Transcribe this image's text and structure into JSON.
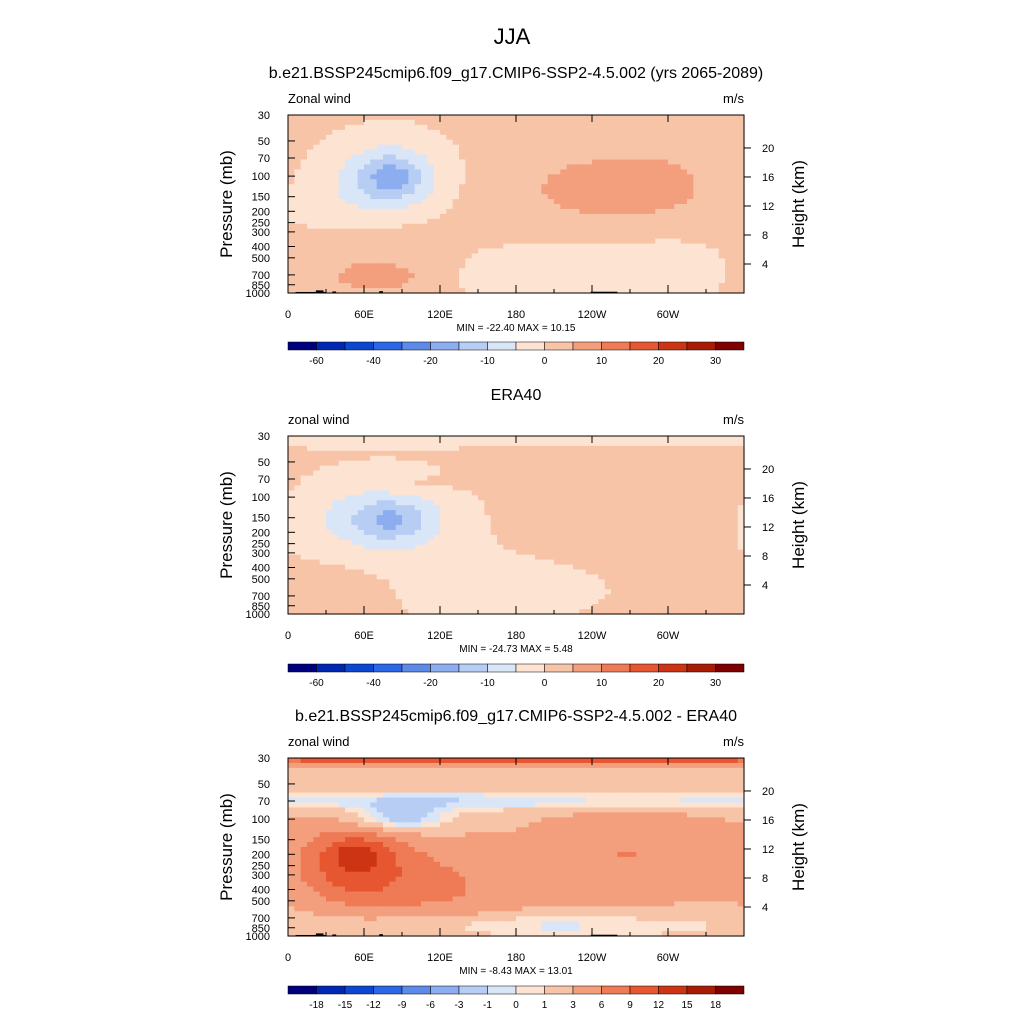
{
  "figure": {
    "title": "JJA"
  },
  "chart_data": [
    {
      "type": "heatmap",
      "title": "b.e21.BSSP245cmip6.f09_g17.CMIP6-SSP2-4.5.002 (yrs 2065-2089)",
      "left_label": "Zonal wind",
      "right_label": "m/s",
      "ylabel": "Pressure (mb)",
      "y2label": "Height (km)",
      "stats": "MIN = -22.40  MAX =  10.15",
      "xticks": [
        "0",
        "60E",
        "120E",
        "180",
        "120W",
        "60W"
      ],
      "yticks": [
        "30",
        "50",
        "70",
        "100",
        "150",
        "200",
        "250",
        "300",
        "400",
        "500",
        "700",
        "850",
        "1000"
      ],
      "y2ticks": [
        "20",
        "16",
        "12",
        "8",
        "4"
      ],
      "background_value": 1,
      "features": [
        {
          "x": 80,
          "y": 110,
          "v": -12,
          "sx": 32,
          "sy": 0.55
        },
        {
          "x": 82,
          "y": 100,
          "v": -8,
          "sx": 16,
          "sy": 0.28
        },
        {
          "x": 30,
          "y": 200,
          "v": -3,
          "sx": 40,
          "sy": 0.6
        },
        {
          "x": 70,
          "y": 500,
          "v": 4,
          "sx": 50,
          "sy": 1.0
        },
        {
          "x": 75,
          "y": 720,
          "v": 3,
          "sx": 30,
          "sy": 0.2
        },
        {
          "x": 240,
          "y": 130,
          "v": 5,
          "sx": 55,
          "sy": 0.65
        },
        {
          "x": 290,
          "y": 120,
          "v": 5,
          "sx": 30,
          "sy": 0.35
        },
        {
          "x": 185,
          "y": 700,
          "v": -4,
          "sx": 60,
          "sy": 0.5
        },
        {
          "x": 290,
          "y": 700,
          "v": -4,
          "sx": 40,
          "sy": 0.5
        }
      ],
      "colorbar_labels": [
        "-60",
        "-40",
        "-20",
        "-10",
        "0",
        "10",
        "20",
        "30"
      ],
      "colorbar_levels": [
        -70,
        -60,
        -50,
        -40,
        -30,
        -20,
        -15,
        -10,
        -5,
        0,
        5,
        10,
        15,
        20,
        25,
        30,
        35
      ],
      "show_terrain": true
    },
    {
      "type": "heatmap",
      "title": "ERA40",
      "left_label": "zonal wind",
      "right_label": "m/s",
      "ylabel": "Pressure (mb)",
      "y2label": "Height (km)",
      "stats": "MIN = -24.73  MAX =   5.48",
      "xticks": [
        "0",
        "60E",
        "120E",
        "180",
        "120W",
        "60W"
      ],
      "yticks": [
        "30",
        "50",
        "70",
        "100",
        "150",
        "200",
        "250",
        "300",
        "400",
        "500",
        "700",
        "850",
        "1000"
      ],
      "y2ticks": [
        "20",
        "16",
        "12",
        "8",
        "4"
      ],
      "background_value": 1,
      "features": [
        {
          "x": 40,
          "y": 30,
          "v": -5,
          "sx": 900,
          "sy": 0.13
        },
        {
          "x": 75,
          "y": 150,
          "v": -10,
          "sx": 45,
          "sy": 0.55
        },
        {
          "x": 80,
          "y": 160,
          "v": -8,
          "sx": 18,
          "sy": 0.25
        },
        {
          "x": 150,
          "y": 600,
          "v": -3,
          "sx": 70,
          "sy": 0.5
        },
        {
          "x": 260,
          "y": 120,
          "v": 4,
          "sx": 60,
          "sy": 0.5
        },
        {
          "x": 100,
          "y": 80,
          "v": 3,
          "sx": 25,
          "sy": 0.15
        },
        {
          "x": 45,
          "y": 650,
          "v": 3,
          "sx": 30,
          "sy": 0.4
        }
      ],
      "colorbar_labels": [
        "-60",
        "-40",
        "-20",
        "-10",
        "0",
        "10",
        "20",
        "30"
      ],
      "colorbar_levels": [
        -70,
        -60,
        -50,
        -40,
        -30,
        -20,
        -15,
        -10,
        -5,
        0,
        5,
        10,
        15,
        20,
        25,
        30,
        35
      ],
      "show_terrain": false
    },
    {
      "type": "heatmap",
      "title": "b.e21.BSSP245cmip6.f09_g17.CMIP6-SSP2-4.5.002 - ERA40",
      "left_label": "zonal wind",
      "right_label": "m/s",
      "ylabel": "Pressure (mb)",
      "y2label": "Height (km)",
      "stats": "MIN = -8.43  MAX =  13.01",
      "xticks": [
        "0",
        "60E",
        "120E",
        "180",
        "120W",
        "60W"
      ],
      "yticks": [
        "30",
        "50",
        "70",
        "100",
        "150",
        "200",
        "250",
        "300",
        "400",
        "500",
        "700",
        "850",
        "1000"
      ],
      "y2ticks": [
        "20",
        "16",
        "12",
        "8",
        "4"
      ],
      "background_value": 2,
      "features": [
        {
          "x": 180,
          "y": 30,
          "v": 8,
          "sx": 900,
          "sy": 0.1
        },
        {
          "x": 180,
          "y": 70,
          "v": -3,
          "sx": 900,
          "sy": 0.14
        },
        {
          "x": 85,
          "y": 100,
          "v": -5,
          "sx": 30,
          "sy": 0.2
        },
        {
          "x": 50,
          "y": 230,
          "v": 8,
          "sx": 30,
          "sy": 0.55
        },
        {
          "x": 55,
          "y": 200,
          "v": 3,
          "sx": 15,
          "sy": 0.2
        },
        {
          "x": 110,
          "y": 300,
          "v": 3,
          "sx": 50,
          "sy": 0.6
        },
        {
          "x": 270,
          "y": 200,
          "v": 4,
          "sx": 50,
          "sy": 0.7
        },
        {
          "x": 180,
          "y": 800,
          "v": -3,
          "sx": 120,
          "sy": 0.2
        },
        {
          "x": 120,
          "y": 500,
          "v": 2,
          "sx": 60,
          "sy": 0.5
        }
      ],
      "colorbar_labels": [
        "-18",
        "-15",
        "-12",
        "-9",
        "-6",
        "-3",
        "-1",
        "0",
        "1",
        "3",
        "6",
        "9",
        "12",
        "15",
        "18"
      ],
      "colorbar_levels": [
        -21,
        -18,
        -15,
        -12,
        -9,
        -6,
        -3,
        -1,
        0,
        1,
        3,
        6,
        9,
        12,
        15,
        18,
        21
      ],
      "show_terrain": true
    }
  ]
}
